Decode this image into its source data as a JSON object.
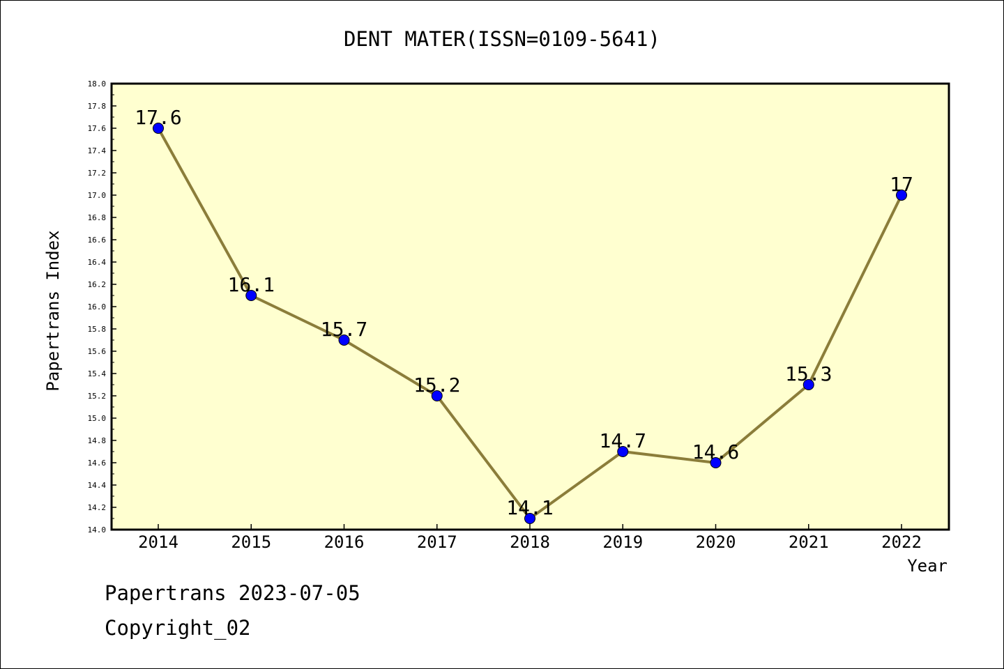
{
  "chart_data": {
    "type": "line",
    "title": "DENT MATER(ISSN=0109-5641)",
    "xlabel": "Year",
    "ylabel": "Papertrans Index",
    "x": [
      "2014",
      "2015",
      "2016",
      "2017",
      "2018",
      "2019",
      "2020",
      "2021",
      "2022"
    ],
    "series": [
      {
        "values": [
          17.6,
          16.1,
          15.7,
          15.2,
          14.1,
          14.7,
          14.6,
          15.3,
          17.0
        ],
        "labels": [
          "17.6",
          "16.1",
          "15.7",
          "15.2",
          "14.1",
          "14.7",
          "14.6",
          "15.3",
          "17"
        ]
      }
    ],
    "ylim": [
      14.0,
      18.0
    ],
    "yticks": [
      "14.0",
      "14.2",
      "14.4",
      "14.6",
      "14.8",
      "15.0",
      "15.2",
      "15.4",
      "15.6",
      "15.8",
      "16.0",
      "16.2",
      "16.4",
      "16.6",
      "16.8",
      "17.0",
      "17.2",
      "17.4",
      "17.6",
      "17.8",
      "18.0"
    ],
    "grid": false,
    "legend": "none",
    "colors": {
      "plot_background": "#ffffd0",
      "line": "#8b7d3a",
      "marker": "#0000ff"
    }
  },
  "footer": {
    "line1": "Papertrans 2023-07-05",
    "line2": "Copyright_02"
  }
}
